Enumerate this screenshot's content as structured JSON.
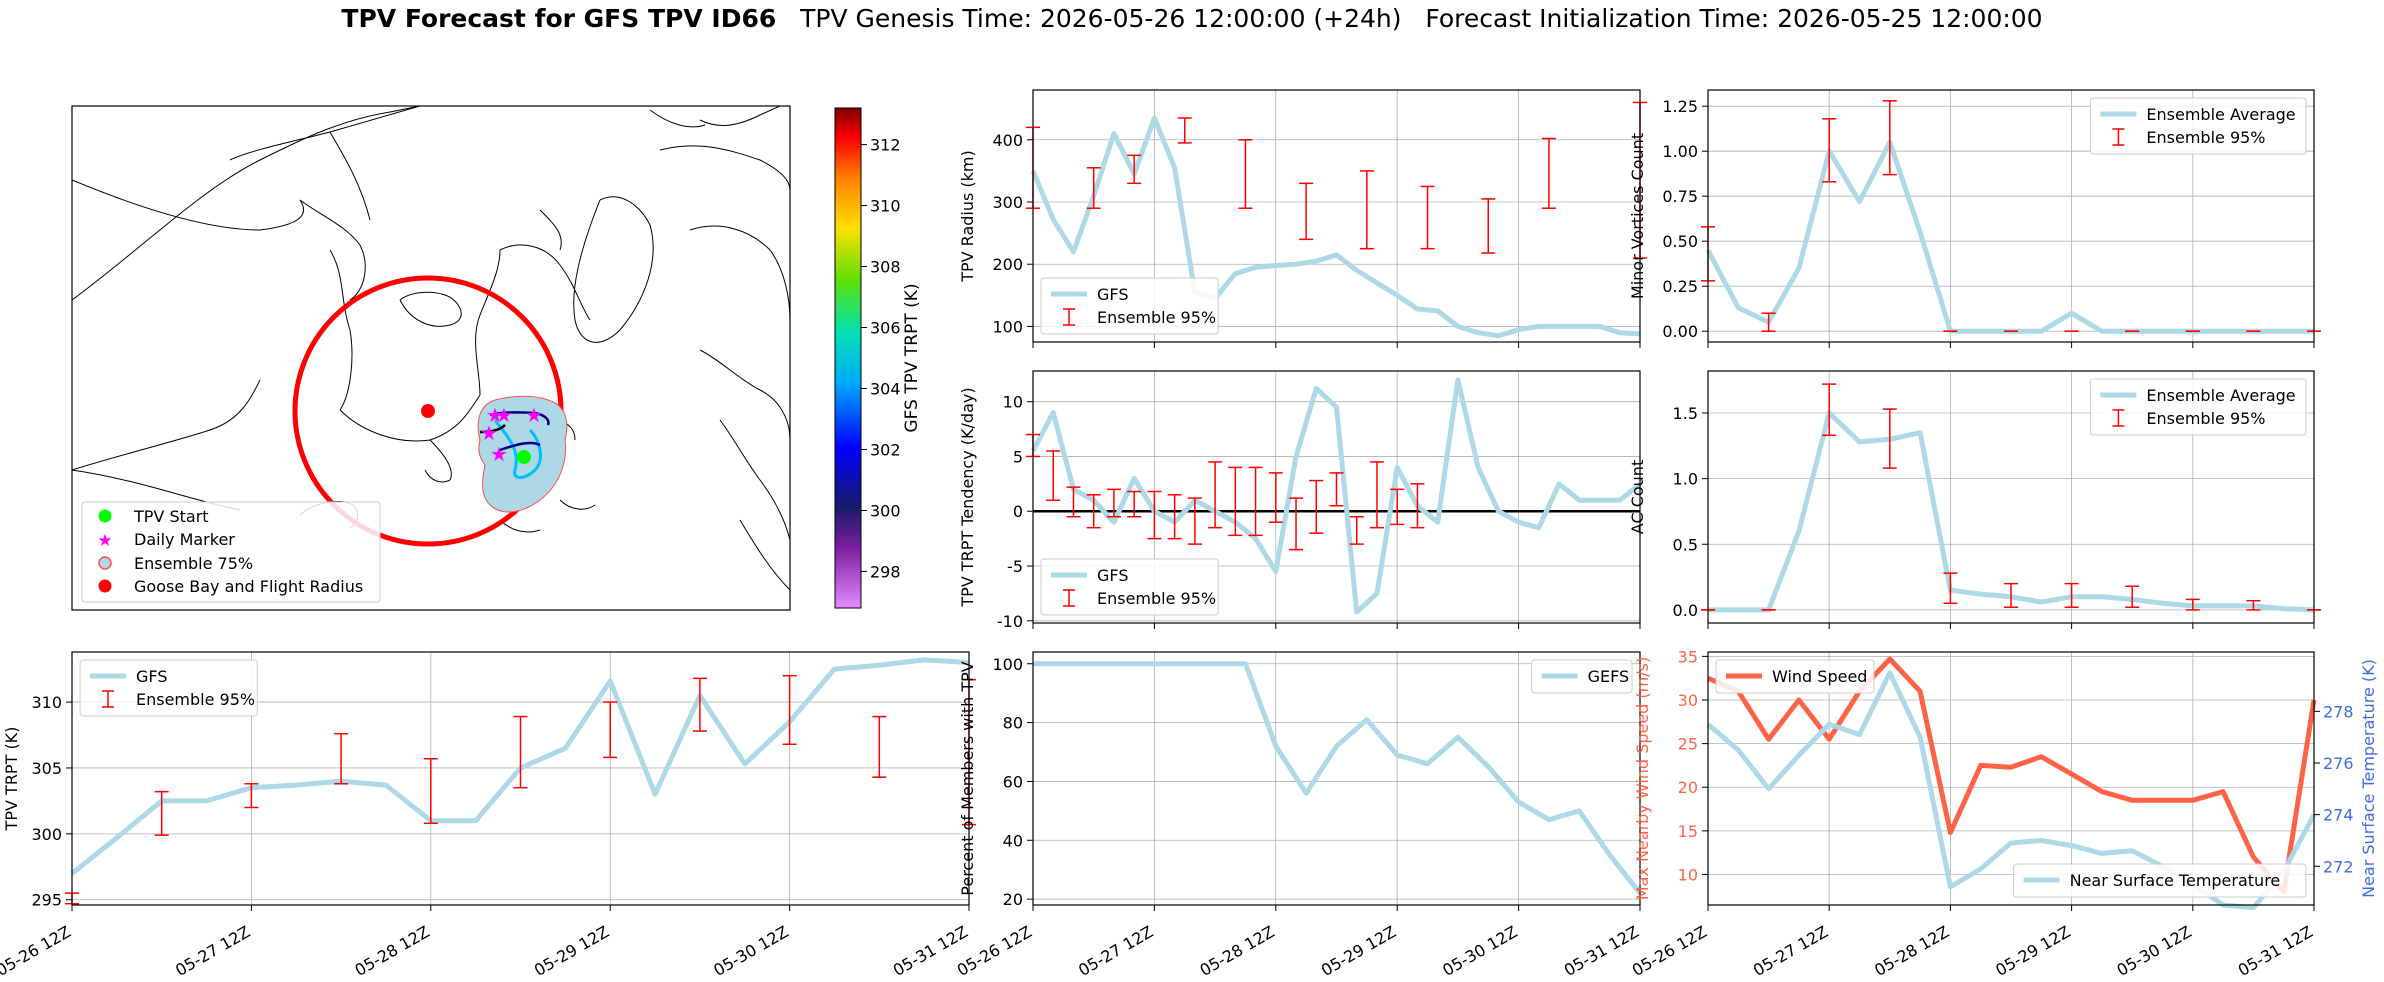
{
  "title": {
    "bold": "TPV Forecast for GFS TPV ID66",
    "genesis": "TPV Genesis Time: 2026-05-26 12:00:00 (+24h)",
    "init": "Forecast Initialization Time: 2026-05-25 12:00:00"
  },
  "colors": {
    "gfs": "#add8e6",
    "err": "#ff0000",
    "wind": "#ff6347",
    "temp_axis": "#4169e1"
  },
  "time_ticks": [
    "05-26 12Z",
    "05-27 12Z",
    "05-28 12Z",
    "05-29 12Z",
    "05-30 12Z",
    "05-31 12Z"
  ],
  "map": {
    "colorbar": {
      "label": "GFS TPV TRPT (K)",
      "ticks": [
        298,
        300,
        302,
        304,
        306,
        308,
        310,
        312
      ],
      "range": [
        296.8,
        313.2
      ]
    },
    "legend": [
      "TPV Start",
      "Daily Marker",
      "Ensemble 75%",
      "Goose Bay and Flight Radius"
    ]
  },
  "chart_data": [
    {
      "id": "radius",
      "type": "line",
      "ylabel": "TPV Radius (km)",
      "ylim": [
        75,
        480
      ],
      "yticks": [
        100,
        200,
        300,
        400
      ],
      "legend": {
        "loc": "lower-left",
        "items": [
          "GFS",
          "Ensemble 95%"
        ]
      },
      "x": [
        0,
        4,
        8,
        12,
        16,
        20,
        24,
        28,
        32,
        36,
        40,
        44,
        48,
        52,
        56,
        60,
        64,
        68,
        72,
        76,
        80,
        84,
        88,
        92,
        96,
        100,
        104,
        108,
        112,
        116,
        120
      ],
      "series": [
        {
          "name": "GFS",
          "values": [
            350,
            272,
            220,
            310,
            410,
            345,
            435,
            355,
            155,
            145,
            185,
            195,
            198,
            200,
            205,
            215,
            190,
            170,
            150,
            128,
            125,
            100,
            90,
            85,
            95,
            100,
            100,
            100,
            100,
            90,
            88
          ]
        }
      ],
      "errors": [
        {
          "x": 0,
          "lo": 290,
          "hi": 420
        },
        {
          "x": 12,
          "lo": 290,
          "hi": 355
        },
        {
          "x": 20,
          "lo": 330,
          "hi": 375
        },
        {
          "x": 30,
          "lo": 395,
          "hi": 435
        },
        {
          "x": 42,
          "lo": 290,
          "hi": 400
        },
        {
          "x": 54,
          "lo": 240,
          "hi": 330
        },
        {
          "x": 66,
          "lo": 225,
          "hi": 350
        },
        {
          "x": 78,
          "lo": 225,
          "hi": 325
        },
        {
          "x": 90,
          "lo": 218,
          "hi": 305
        },
        {
          "x": 102,
          "lo": 290,
          "hi": 402
        },
        {
          "x": 120,
          "lo": 210,
          "hi": 460
        }
      ]
    },
    {
      "id": "minor",
      "type": "line",
      "ylabel": "Minor Vortices Count",
      "ylim": [
        -0.06,
        1.34
      ],
      "yticks": [
        0,
        0.25,
        0.5,
        0.75,
        1,
        1.25
      ],
      "ytick_labels": [
        "0.00",
        "0.25",
        "0.50",
        "0.75",
        "1.00",
        "1.25"
      ],
      "legend": {
        "loc": "upper-right",
        "items": [
          "Ensemble Average",
          "Ensemble 95%"
        ]
      },
      "x": [
        0,
        6,
        12,
        18,
        24,
        30,
        36,
        42,
        48,
        54,
        60,
        66,
        72,
        78,
        84,
        90,
        96,
        102,
        108,
        114,
        120
      ],
      "series": [
        {
          "name": "Ensemble Average",
          "values": [
            0.45,
            0.13,
            0.05,
            0.35,
            1.0,
            0.72,
            1.05,
            0.55,
            0,
            0,
            0,
            0,
            0.1,
            0,
            0,
            0,
            0,
            0,
            0,
            0,
            0
          ]
        }
      ],
      "errors": [
        {
          "x": 0,
          "lo": 0.28,
          "hi": 0.58
        },
        {
          "x": 12,
          "lo": 0,
          "hi": 0.1
        },
        {
          "x": 24,
          "lo": 0.83,
          "hi": 1.18
        },
        {
          "x": 36,
          "lo": 0.87,
          "hi": 1.28
        },
        {
          "x": 48,
          "lo": 0,
          "hi": 0
        },
        {
          "x": 60,
          "lo": 0,
          "hi": 0
        },
        {
          "x": 72,
          "lo": 0,
          "hi": 0
        },
        {
          "x": 84,
          "lo": 0,
          "hi": 0
        },
        {
          "x": 96,
          "lo": 0,
          "hi": 0
        },
        {
          "x": 108,
          "lo": 0,
          "hi": 0
        },
        {
          "x": 120,
          "lo": 0,
          "hi": 0
        }
      ]
    },
    {
      "id": "trpt_tend",
      "type": "line",
      "ylabel": "TPV TRPT Tendency (K/day)",
      "ylim": [
        -10.2,
        12.8
      ],
      "yticks": [
        -10,
        -5,
        0,
        5,
        10
      ],
      "zero_line": true,
      "legend": {
        "loc": "lower-left",
        "items": [
          "GFS",
          "Ensemble 95%"
        ]
      },
      "x": [
        0,
        4,
        8,
        12,
        16,
        20,
        24,
        28,
        32,
        36,
        40,
        44,
        48,
        52,
        56,
        60,
        64,
        68,
        72,
        76,
        80,
        84,
        88,
        92,
        96,
        100,
        104,
        108,
        112,
        116,
        120
      ],
      "series": [
        {
          "name": "GFS",
          "values": [
            5.5,
            9,
            2,
            1,
            -1,
            3,
            0,
            -1,
            1,
            0,
            -1,
            -2.5,
            -5.5,
            5,
            11.2,
            9.5,
            -9.2,
            -7.5,
            4,
            0.5,
            -1,
            12,
            4,
            0,
            -1,
            -1.5,
            2.5,
            1,
            1,
            1,
            2.5
          ]
        }
      ],
      "errors": [
        {
          "x": 0,
          "lo": 5,
          "hi": 7
        },
        {
          "x": 4,
          "lo": 1,
          "hi": 5.5
        },
        {
          "x": 8,
          "lo": -0.5,
          "hi": 2.2
        },
        {
          "x": 12,
          "lo": -1.5,
          "hi": 1.5
        },
        {
          "x": 16,
          "lo": -0.5,
          "hi": 2
        },
        {
          "x": 20,
          "lo": -0.5,
          "hi": 1.8
        },
        {
          "x": 24,
          "lo": -2.5,
          "hi": 1.8
        },
        {
          "x": 28,
          "lo": -2.5,
          "hi": 1.5
        },
        {
          "x": 32,
          "lo": -3,
          "hi": 1.2
        },
        {
          "x": 36,
          "lo": -1.5,
          "hi": 4.5
        },
        {
          "x": 40,
          "lo": -2.2,
          "hi": 4
        },
        {
          "x": 44,
          "lo": -2.2,
          "hi": 4
        },
        {
          "x": 48,
          "lo": -1,
          "hi": 3.5
        },
        {
          "x": 52,
          "lo": -3.5,
          "hi": 1.2
        },
        {
          "x": 56,
          "lo": -2,
          "hi": 2.8
        },
        {
          "x": 60,
          "lo": 0.5,
          "hi": 3.5
        },
        {
          "x": 64,
          "lo": -3,
          "hi": -0.5
        },
        {
          "x": 68,
          "lo": -1.5,
          "hi": 4.5
        },
        {
          "x": 72,
          "lo": -1.2,
          "hi": 2
        },
        {
          "x": 76,
          "lo": -1.5,
          "hi": 2.5
        }
      ]
    },
    {
      "id": "ac",
      "type": "line",
      "ylabel": "AC Count",
      "ylim": [
        -0.1,
        1.82
      ],
      "yticks": [
        0,
        0.5,
        1,
        1.5
      ],
      "ytick_labels": [
        "0.0",
        "0.5",
        "1.0",
        "1.5"
      ],
      "legend": {
        "loc": "upper-right",
        "items": [
          "Ensemble Average",
          "Ensemble 95%"
        ]
      },
      "x": [
        0,
        6,
        12,
        18,
        24,
        30,
        36,
        42,
        48,
        54,
        60,
        66,
        72,
        78,
        84,
        90,
        96,
        102,
        108,
        114,
        120
      ],
      "series": [
        {
          "name": "Ensemble Average",
          "values": [
            0,
            0,
            0,
            0.6,
            1.5,
            1.28,
            1.3,
            1.35,
            0.15,
            0.12,
            0.1,
            0.06,
            0.1,
            0.1,
            0.08,
            0.05,
            0.03,
            0.03,
            0.03,
            0.01,
            0
          ]
        }
      ],
      "errors": [
        {
          "x": 0,
          "lo": 0,
          "hi": 0
        },
        {
          "x": 12,
          "lo": 0,
          "hi": 0
        },
        {
          "x": 24,
          "lo": 1.33,
          "hi": 1.72
        },
        {
          "x": 36,
          "lo": 1.08,
          "hi": 1.53
        },
        {
          "x": 48,
          "lo": 0.05,
          "hi": 0.28
        },
        {
          "x": 60,
          "lo": 0.02,
          "hi": 0.2
        },
        {
          "x": 72,
          "lo": 0.02,
          "hi": 0.2
        },
        {
          "x": 84,
          "lo": 0.02,
          "hi": 0.18
        },
        {
          "x": 96,
          "lo": 0,
          "hi": 0.08
        },
        {
          "x": 108,
          "lo": 0,
          "hi": 0.07
        },
        {
          "x": 120,
          "lo": 0,
          "hi": 0
        }
      ]
    },
    {
      "id": "trpt",
      "type": "line",
      "ylabel": "TPV TRPT (K)",
      "ylim": [
        294.6,
        313.8
      ],
      "yticks": [
        295,
        300,
        305,
        310
      ],
      "legend": {
        "loc": "upper-left",
        "items": [
          "GFS",
          "Ensemble 95%"
        ]
      },
      "x": [
        0,
        6,
        12,
        18,
        24,
        30,
        36,
        42,
        48,
        54,
        60,
        66,
        72,
        78,
        84,
        90,
        96,
        102,
        108,
        114,
        120
      ],
      "series": [
        {
          "name": "GFS",
          "values": [
            297,
            299.7,
            302.5,
            302.5,
            303.5,
            303.7,
            304,
            303.7,
            301,
            301,
            305,
            306.5,
            311.6,
            303,
            310.5,
            305.3,
            308.5,
            312.5,
            312.8,
            313.2,
            313
          ]
        }
      ],
      "errors": [
        {
          "x": 0,
          "lo": 294.7,
          "hi": 295.5
        },
        {
          "x": 12,
          "lo": 299.9,
          "hi": 303.2
        },
        {
          "x": 24,
          "lo": 302,
          "hi": 303.8
        },
        {
          "x": 36,
          "lo": 303.8,
          "hi": 307.6
        },
        {
          "x": 48,
          "lo": 300.8,
          "hi": 305.7
        },
        {
          "x": 60,
          "lo": 303.5,
          "hi": 308.9
        },
        {
          "x": 72,
          "lo": 305.8,
          "hi": 310
        },
        {
          "x": 84,
          "lo": 307.8,
          "hi": 311.8
        },
        {
          "x": 96,
          "lo": 306.8,
          "hi": 312
        },
        {
          "x": 108,
          "lo": 304.3,
          "hi": 308.9
        },
        {
          "x": 120,
          "lo": 300.7,
          "hi": 311.7
        }
      ]
    },
    {
      "id": "percent",
      "type": "line",
      "ylabel": "Percent of Members with TPV",
      "ylim": [
        18,
        104
      ],
      "yticks": [
        20,
        40,
        60,
        80,
        100
      ],
      "legend": {
        "loc": "upper-right",
        "items": [
          "GEFS"
        ]
      },
      "x": [
        0,
        6,
        12,
        18,
        24,
        30,
        36,
        42,
        48,
        54,
        60,
        66,
        72,
        78,
        84,
        90,
        96,
        102,
        108,
        114,
        120
      ],
      "series": [
        {
          "name": "GEFS",
          "values": [
            100,
            100,
            100,
            100,
            100,
            100,
            100,
            100,
            72,
            56,
            72,
            81,
            69,
            66,
            75,
            65,
            53,
            47,
            50,
            35,
            22
          ]
        }
      ],
      "errors": []
    },
    {
      "id": "wind",
      "type": "line",
      "ylabel": "Max Nearby Wind Speed (m/s)",
      "ylim": [
        6.5,
        35.5
      ],
      "yticks": [
        10,
        15,
        20,
        25,
        30,
        35
      ],
      "ylabel_right": "Near Surface Temperature (K)",
      "ylim_right": [
        270.5,
        280.3
      ],
      "yticks_right": [
        272,
        274,
        276,
        278
      ],
      "legend_left": {
        "loc": "upper-left",
        "items": [
          "Wind Speed"
        ]
      },
      "legend_right": {
        "loc": "lower-right",
        "items": [
          "Near Surface Temperature"
        ]
      },
      "x": [
        0,
        6,
        12,
        18,
        24,
        30,
        36,
        42,
        48,
        54,
        60,
        66,
        72,
        78,
        84,
        90,
        96,
        102,
        108,
        114,
        120
      ],
      "series": [
        {
          "name": "Wind Speed",
          "axis": "left",
          "values": [
            32.5,
            31,
            25.5,
            30,
            25.5,
            31,
            34.7,
            31,
            14.8,
            22.5,
            22.3,
            23.5,
            21.5,
            19.5,
            18.5,
            18.5,
            18.5,
            19.5,
            12,
            8,
            30
          ]
        },
        {
          "name": "Near Surface Temperature",
          "axis": "right",
          "values": [
            277.5,
            276.5,
            275,
            276.3,
            277.5,
            277.1,
            279.5,
            277,
            271.2,
            271.9,
            272.9,
            273,
            272.8,
            272.5,
            272.6,
            272,
            271.3,
            270.5,
            270.4,
            271.8,
            274
          ]
        }
      ],
      "errors": []
    }
  ]
}
